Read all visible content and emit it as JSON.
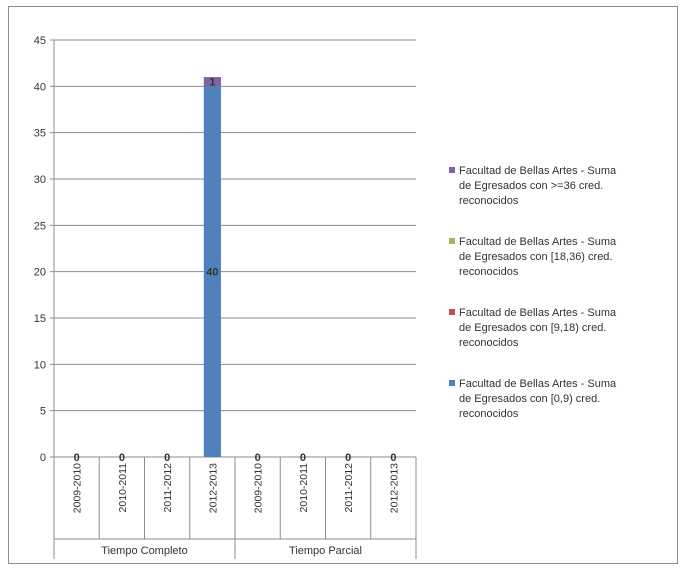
{
  "chart_data": {
    "type": "bar",
    "stacked": true,
    "groups": [
      "Tiempo Completo",
      "Tiempo Parcial"
    ],
    "categories": [
      "2009-2010",
      "2010-2011",
      "2011-2012",
      "2012-2013",
      "2009-2010",
      "2010-2011",
      "2011-2012",
      "2012-2013"
    ],
    "ylim": [
      0,
      45
    ],
    "yticks": [
      0,
      5,
      10,
      15,
      20,
      25,
      30,
      35,
      40,
      45
    ],
    "grid": true,
    "legend_position": "right",
    "series": [
      {
        "name_lines": [
          "Facultad de Bellas Artes - Suma",
          "de Egresados con [0,9) cred.",
          "reconocidos"
        ],
        "color": "#4f81bd",
        "values": [
          0,
          0,
          0,
          40,
          0,
          0,
          0,
          0
        ]
      },
      {
        "name_lines": [
          "Facultad de Bellas Artes - Suma",
          "de Egresados con [9,18) cred.",
          "reconocidos"
        ],
        "color": "#c0504d",
        "values": [
          0,
          0,
          0,
          0,
          0,
          0,
          0,
          0
        ]
      },
      {
        "name_lines": [
          "Facultad de Bellas Artes - Suma",
          "de Egresados con [18,36) cred.",
          "reconocidos"
        ],
        "color": "#9bbb59",
        "values": [
          0,
          0,
          0,
          0,
          0,
          0,
          0,
          0
        ]
      },
      {
        "name_lines": [
          "Facultad de Bellas Artes - Suma",
          "de Egresados con >=36 cred.",
          "reconocidos"
        ],
        "color": "#8064a2",
        "values": [
          0,
          0,
          0,
          1,
          0,
          0,
          0,
          0
        ]
      }
    ],
    "data_labels": [
      "0",
      "0",
      "0",
      "40",
      "0",
      "0",
      "0",
      "0"
    ],
    "top_labels": [
      "",
      "",
      "",
      "1",
      "",
      "",
      "",
      ""
    ]
  }
}
